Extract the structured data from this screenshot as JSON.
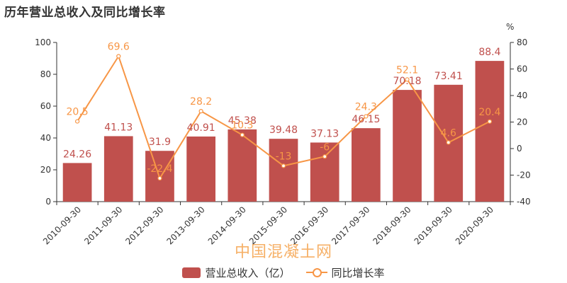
{
  "chart_data": {
    "type": "bar",
    "title": "历年营业总收入及同比增长率",
    "categories": [
      "2010-09-30",
      "2011-09-30",
      "2012-09-30",
      "2013-09-30",
      "2014-09-30",
      "2015-09-30",
      "2016-09-30",
      "2017-09-30",
      "2018-09-30",
      "2019-09-30",
      "2020-09-30"
    ],
    "series": [
      {
        "name": "营业总收入（亿）",
        "type": "bar",
        "axis": "left",
        "color": "#c0504d",
        "values": [
          24.26,
          41.13,
          31.9,
          40.91,
          45.38,
          39.48,
          37.13,
          46.15,
          70.18,
          73.41,
          88.4
        ],
        "labels": [
          "24.26",
          "41.13",
          "31.9",
          "40.91",
          "45.38",
          "39.48",
          "37.13",
          "46.15",
          "70.18",
          "73.41",
          "88.4"
        ]
      },
      {
        "name": "同比增长率",
        "type": "line",
        "axis": "right",
        "color": "#f79646",
        "values": [
          20.5,
          69.6,
          -22.4,
          28.2,
          10.3,
          -13,
          -6,
          24.3,
          52.1,
          4.6,
          20.4
        ],
        "labels": [
          "20.5",
          "69.6",
          "-22.4",
          "28.2",
          "10.3",
          "-13",
          "-6",
          "24.3",
          "52.1",
          "4.6",
          "20.4"
        ]
      }
    ],
    "ylim_left": [
      0,
      100
    ],
    "yticks_left": [
      "0",
      "20",
      "40",
      "60",
      "80",
      "100"
    ],
    "ylim_right": [
      -40,
      80
    ],
    "yticks_right": [
      "-40",
      "-20",
      "0",
      "20",
      "40",
      "60",
      "80"
    ],
    "ylabel_right": "%",
    "grid": false,
    "legend_position": "bottom-center"
  },
  "watermark": "中国混凝土网"
}
